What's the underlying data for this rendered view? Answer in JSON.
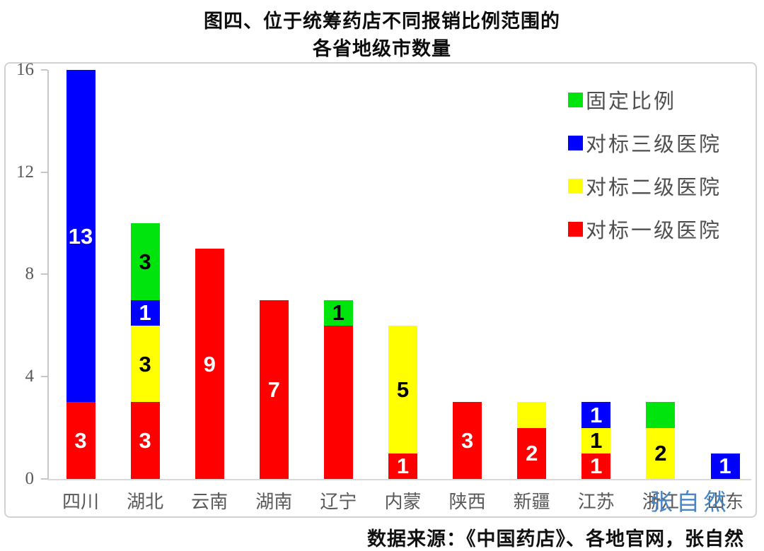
{
  "title": {
    "line1": "图四、位于统筹药店不同报销比例范围的",
    "line2": "各省地级市数量"
  },
  "source_note": "数据来源：《中国药店》、各地官网，张自然",
  "watermark": "张自然",
  "colors": {
    "red": "#ff0000",
    "yellow": "#ffff00",
    "blue": "#0000fe",
    "green": "#00e40e",
    "axis_line": "#c6c6c6",
    "tick_label": "#595959",
    "legend_text": "#4f4f4f",
    "watermark_blue": "#4080c4",
    "box_border": "#d2d2d2",
    "baseline": "#d9d9d9"
  },
  "legend": {
    "position": "top-right",
    "items": [
      {
        "label": "固定比例",
        "color_key": "green"
      },
      {
        "label": "对标三级医院",
        "color_key": "blue"
      },
      {
        "label": "对标二级医院",
        "color_key": "yellow"
      },
      {
        "label": "对标一级医院",
        "color_key": "red"
      }
    ]
  },
  "chart_data": {
    "type": "bar",
    "stacked": true,
    "title": "图四、位于统筹药店不同报销比例范围的各省地级市数量",
    "xlabel": "",
    "ylabel": "",
    "ylim": [
      0,
      16
    ],
    "yticks": [
      0,
      4,
      8,
      12,
      16
    ],
    "grid": false,
    "legend_position": "top-right",
    "categories": [
      "四川",
      "湖北",
      "云南",
      "湖南",
      "辽宁",
      "内蒙",
      "陕西",
      "新疆",
      "江苏",
      "浙江",
      "山东"
    ],
    "series": [
      {
        "name": "对标一级医院",
        "color_key": "red",
        "label_color": "#ffffff",
        "values": [
          3,
          3,
          9,
          7,
          6,
          1,
          3,
          2,
          1,
          0,
          0
        ],
        "labels": [
          "3",
          "3",
          "9",
          "7",
          "",
          "1",
          "3",
          "2",
          "1",
          "",
          ""
        ]
      },
      {
        "name": "对标二级医院",
        "color_key": "yellow",
        "label_color": "#000000",
        "values": [
          0,
          3,
          0,
          0,
          0,
          5,
          0,
          1,
          1,
          2,
          0
        ],
        "labels": [
          "",
          "3",
          "",
          "",
          "",
          "5",
          "",
          "",
          "1",
          "2",
          ""
        ]
      },
      {
        "name": "对标三级医院",
        "color_key": "blue",
        "label_color": "#ffffff",
        "values": [
          13,
          1,
          0,
          0,
          0,
          0,
          0,
          0,
          1,
          0,
          1
        ],
        "labels": [
          "13",
          "1",
          "",
          "",
          "",
          "",
          "",
          "",
          "1",
          "",
          "1"
        ]
      },
      {
        "name": "固定比例",
        "color_key": "green",
        "label_color": "#000000",
        "values": [
          0,
          3,
          0,
          0,
          1,
          0,
          0,
          0,
          0,
          1,
          0
        ],
        "labels": [
          "",
          "3",
          "",
          "",
          "1",
          "",
          "",
          "",
          "",
          "",
          ""
        ]
      }
    ],
    "totals": [
      16,
      10,
      9,
      7,
      7,
      6,
      3,
      3,
      3,
      3,
      1
    ]
  }
}
